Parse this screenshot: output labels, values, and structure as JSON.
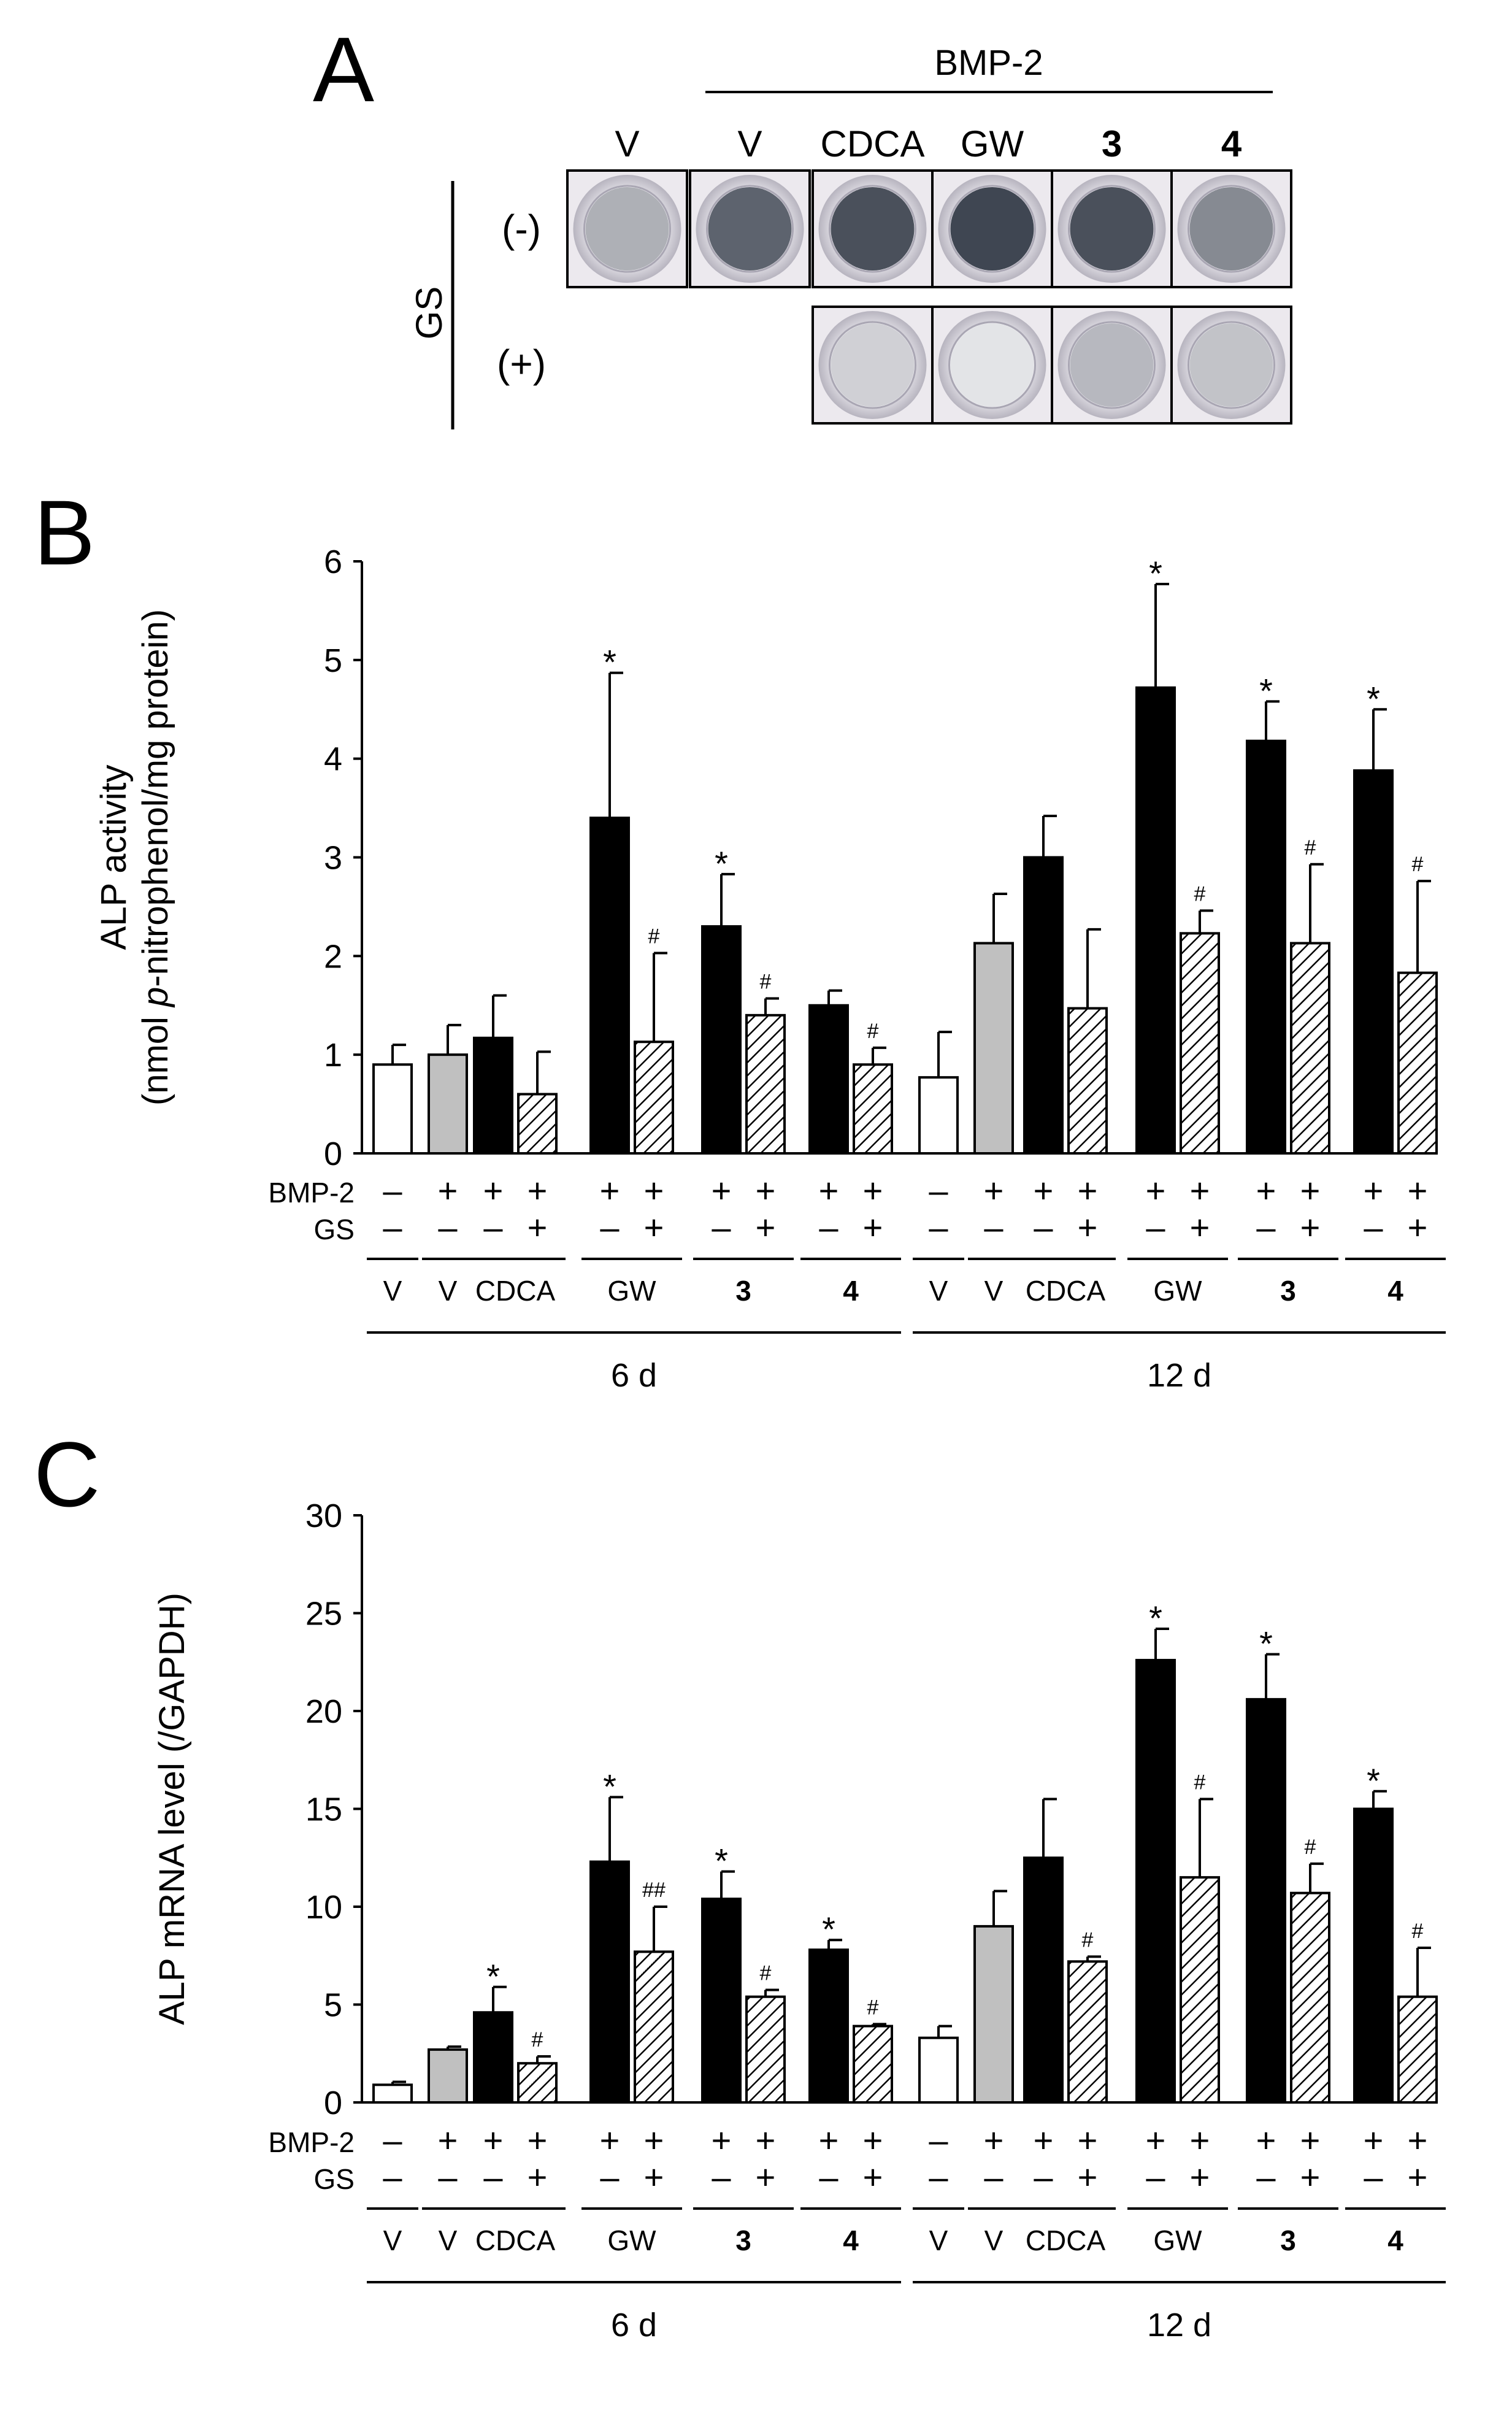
{
  "panel_a": {
    "letter": "A",
    "bmp_label": "BMP-2",
    "columns": [
      {
        "label": "V",
        "bold": false
      },
      {
        "label": "V",
        "bold": false
      },
      {
        "label": "CDCA",
        "bold": false
      },
      {
        "label": "GW",
        "bold": false
      },
      {
        "label": "3",
        "bold": true
      },
      {
        "label": "4",
        "bold": true
      }
    ],
    "gs_label": "GS",
    "row_minus": "(-)",
    "row_plus": "(+)",
    "wells_minus": [
      {
        "stain": 0.35
      },
      {
        "stain": 0.75
      },
      {
        "stain": 0.85
      },
      {
        "stain": 0.9
      },
      {
        "stain": 0.85
      },
      {
        "stain": 0.55
      }
    ],
    "wells_plus": [
      {
        "column": 2,
        "stain": 0.18
      },
      {
        "column": 3,
        "stain": 0.08
      },
      {
        "column": 4,
        "stain": 0.3
      },
      {
        "column": 5,
        "stain": 0.25
      }
    ]
  },
  "colors": {
    "open": "#ffffff",
    "gray": "#c0c0c0",
    "black": "#000000",
    "hatch": "#000000",
    "well_rim": "#c9c6ce",
    "well_stain": "#2b3340"
  },
  "chart_data": [
    {
      "type": "bar",
      "panel": "B",
      "ylabel_line1": "ALP activity",
      "ylabel_line2_pre": "(nmol ",
      "ylabel_line2_italic": "p",
      "ylabel_line2_post": "-nitrophenol/mg protein)",
      "ylim": [
        0,
        6
      ],
      "yticks": [
        0,
        1,
        2,
        3,
        4,
        5,
        6
      ],
      "row_labels": [
        "BMP-2",
        "GS"
      ],
      "timepoints": [
        "6 d",
        "12 d"
      ],
      "groups": [
        {
          "label": "V",
          "bold": false,
          "bmp2": [
            "–"
          ],
          "gs": [
            "–"
          ]
        },
        {
          "label": "V",
          "bold": false,
          "bmp2": [
            "+"
          ],
          "gs": [
            "–"
          ]
        },
        {
          "label": "CDCA",
          "bold": false,
          "bmp2": [
            "+",
            "+"
          ],
          "gs": [
            "–",
            "+"
          ]
        },
        {
          "label": "GW",
          "bold": false,
          "bmp2": [
            "+",
            "+"
          ],
          "gs": [
            "–",
            "+"
          ]
        },
        {
          "label": "3",
          "bold": true,
          "bmp2": [
            "+",
            "+"
          ],
          "gs": [
            "–",
            "+"
          ]
        },
        {
          "label": "4",
          "bold": true,
          "bmp2": [
            "+",
            "+"
          ],
          "gs": [
            "–",
            "+"
          ]
        }
      ],
      "bars": [
        {
          "day": "6 d",
          "group": 0,
          "fill": "open",
          "value": 0.9,
          "err": 0.2,
          "mark": ""
        },
        {
          "day": "6 d",
          "group": 1,
          "fill": "gray",
          "value": 1.0,
          "err": 0.3,
          "mark": ""
        },
        {
          "day": "6 d",
          "group": 2,
          "fill": "black",
          "value": 1.17,
          "err": 0.43,
          "mark": ""
        },
        {
          "day": "6 d",
          "group": 2,
          "fill": "hatch",
          "value": 0.6,
          "err": 0.43,
          "mark": ""
        },
        {
          "day": "6 d",
          "group": 3,
          "fill": "black",
          "value": 3.4,
          "err": 1.47,
          "mark": "*"
        },
        {
          "day": "6 d",
          "group": 3,
          "fill": "hatch",
          "value": 1.13,
          "err": 0.9,
          "mark": "#"
        },
        {
          "day": "6 d",
          "group": 4,
          "fill": "black",
          "value": 2.3,
          "err": 0.53,
          "mark": "*"
        },
        {
          "day": "6 d",
          "group": 4,
          "fill": "hatch",
          "value": 1.4,
          "err": 0.17,
          "mark": "#"
        },
        {
          "day": "6 d",
          "group": 5,
          "fill": "black",
          "value": 1.5,
          "err": 0.15,
          "mark": ""
        },
        {
          "day": "6 d",
          "group": 5,
          "fill": "hatch",
          "value": 0.9,
          "err": 0.17,
          "mark": "#"
        },
        {
          "day": "12 d",
          "group": 0,
          "fill": "open",
          "value": 0.77,
          "err": 0.46,
          "mark": ""
        },
        {
          "day": "12 d",
          "group": 1,
          "fill": "gray",
          "value": 2.13,
          "err": 0.5,
          "mark": ""
        },
        {
          "day": "12 d",
          "group": 2,
          "fill": "black",
          "value": 3.0,
          "err": 0.42,
          "mark": ""
        },
        {
          "day": "12 d",
          "group": 2,
          "fill": "hatch",
          "value": 1.47,
          "err": 0.8,
          "mark": ""
        },
        {
          "day": "12 d",
          "group": 3,
          "fill": "black",
          "value": 4.72,
          "err": 1.05,
          "mark": "*"
        },
        {
          "day": "12 d",
          "group": 3,
          "fill": "hatch",
          "value": 2.23,
          "err": 0.23,
          "mark": "#"
        },
        {
          "day": "12 d",
          "group": 4,
          "fill": "black",
          "value": 4.18,
          "err": 0.4,
          "mark": "*"
        },
        {
          "day": "12 d",
          "group": 4,
          "fill": "hatch",
          "value": 2.13,
          "err": 0.8,
          "mark": "#"
        },
        {
          "day": "12 d",
          "group": 5,
          "fill": "black",
          "value": 3.88,
          "err": 0.62,
          "mark": "*"
        },
        {
          "day": "12 d",
          "group": 5,
          "fill": "hatch",
          "value": 1.83,
          "err": 0.93,
          "mark": "#"
        }
      ]
    },
    {
      "type": "bar",
      "panel": "C",
      "ylabel_line1": "ALP mRNA level (/GAPDH)",
      "ylim": [
        0,
        30
      ],
      "yticks": [
        0,
        5,
        10,
        15,
        20,
        25,
        30
      ],
      "row_labels": [
        "BMP-2",
        "GS"
      ],
      "timepoints": [
        "6 d",
        "12 d"
      ],
      "groups": [
        {
          "label": "V",
          "bold": false,
          "bmp2": [
            "–"
          ],
          "gs": [
            "–"
          ]
        },
        {
          "label": "V",
          "bold": false,
          "bmp2": [
            "+"
          ],
          "gs": [
            "–"
          ]
        },
        {
          "label": "CDCA",
          "bold": false,
          "bmp2": [
            "+",
            "+"
          ],
          "gs": [
            "–",
            "+"
          ]
        },
        {
          "label": "GW",
          "bold": false,
          "bmp2": [
            "+",
            "+"
          ],
          "gs": [
            "–",
            "+"
          ]
        },
        {
          "label": "3",
          "bold": true,
          "bmp2": [
            "+",
            "+"
          ],
          "gs": [
            "–",
            "+"
          ]
        },
        {
          "label": "4",
          "bold": true,
          "bmp2": [
            "+",
            "+"
          ],
          "gs": [
            "–",
            "+"
          ]
        }
      ],
      "bars": [
        {
          "day": "6 d",
          "group": 0,
          "fill": "open",
          "value": 0.9,
          "err": 0.15,
          "mark": ""
        },
        {
          "day": "6 d",
          "group": 1,
          "fill": "gray",
          "value": 2.7,
          "err": 0.15,
          "mark": ""
        },
        {
          "day": "6 d",
          "group": 2,
          "fill": "black",
          "value": 4.6,
          "err": 1.3,
          "mark": "*"
        },
        {
          "day": "6 d",
          "group": 2,
          "fill": "hatch",
          "value": 2.0,
          "err": 0.35,
          "mark": "#"
        },
        {
          "day": "6 d",
          "group": 3,
          "fill": "black",
          "value": 12.3,
          "err": 3.3,
          "mark": "*"
        },
        {
          "day": "6 d",
          "group": 3,
          "fill": "hatch",
          "value": 7.7,
          "err": 2.3,
          "mark": "##"
        },
        {
          "day": "6 d",
          "group": 4,
          "fill": "black",
          "value": 10.4,
          "err": 1.4,
          "mark": "*"
        },
        {
          "day": "6 d",
          "group": 4,
          "fill": "hatch",
          "value": 5.4,
          "err": 0.35,
          "mark": "#"
        },
        {
          "day": "6 d",
          "group": 5,
          "fill": "black",
          "value": 7.8,
          "err": 0.5,
          "mark": "*"
        },
        {
          "day": "6 d",
          "group": 5,
          "fill": "hatch",
          "value": 3.9,
          "err": 0.1,
          "mark": "#"
        },
        {
          "day": "12 d",
          "group": 0,
          "fill": "open",
          "value": 3.3,
          "err": 0.6,
          "mark": ""
        },
        {
          "day": "12 d",
          "group": 1,
          "fill": "gray",
          "value": 9.0,
          "err": 1.8,
          "mark": ""
        },
        {
          "day": "12 d",
          "group": 2,
          "fill": "black",
          "value": 12.5,
          "err": 3.0,
          "mark": ""
        },
        {
          "day": "12 d",
          "group": 2,
          "fill": "hatch",
          "value": 7.2,
          "err": 0.25,
          "mark": "#"
        },
        {
          "day": "12 d",
          "group": 3,
          "fill": "black",
          "value": 22.6,
          "err": 1.6,
          "mark": "*"
        },
        {
          "day": "12 d",
          "group": 3,
          "fill": "hatch",
          "value": 11.5,
          "err": 4.0,
          "mark": "#"
        },
        {
          "day": "12 d",
          "group": 4,
          "fill": "black",
          "value": 20.6,
          "err": 2.3,
          "mark": "*"
        },
        {
          "day": "12 d",
          "group": 4,
          "fill": "hatch",
          "value": 10.7,
          "err": 1.5,
          "mark": "#"
        },
        {
          "day": "12 d",
          "group": 5,
          "fill": "black",
          "value": 15.0,
          "err": 0.9,
          "mark": "*"
        },
        {
          "day": "12 d",
          "group": 5,
          "fill": "hatch",
          "value": 5.4,
          "err": 2.5,
          "mark": "#"
        }
      ]
    }
  ]
}
